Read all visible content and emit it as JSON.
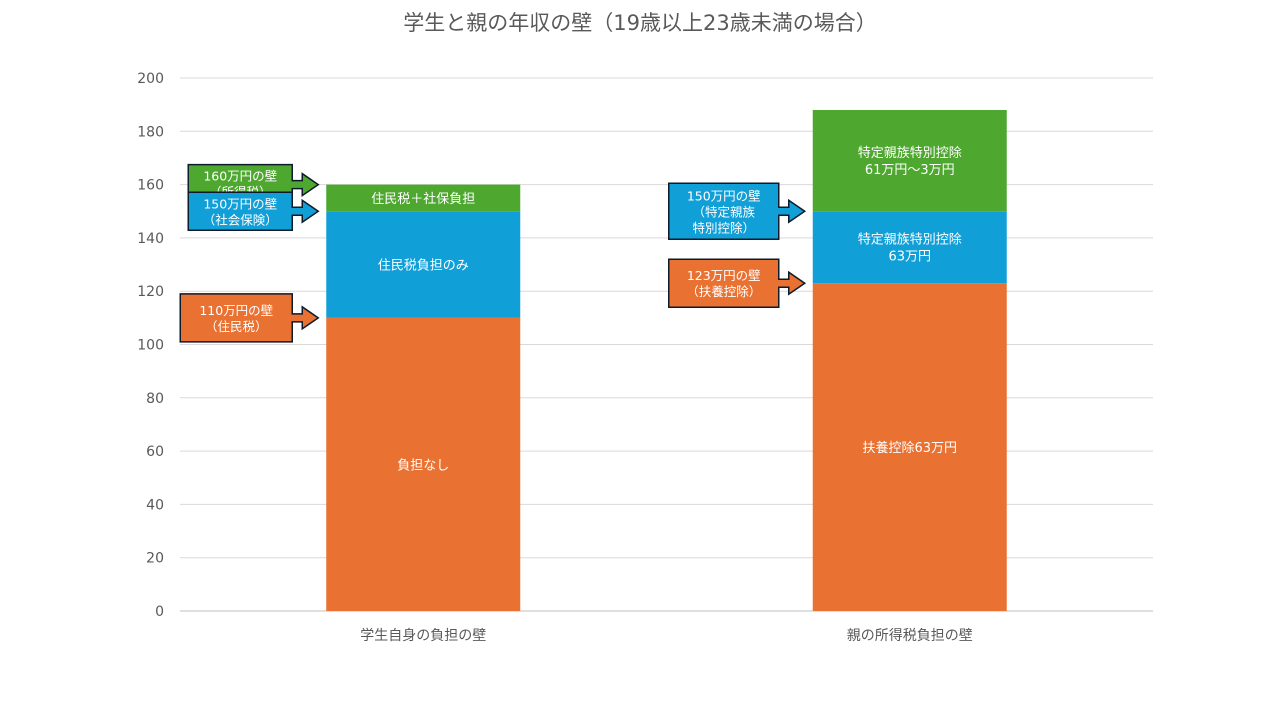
{
  "chart_data": {
    "type": "bar",
    "stacked": true,
    "title": "学生と親の年収の壁（19歳以上23歳未満の場合）",
    "xlabel": "",
    "ylabel": "",
    "ylim": [
      0,
      200
    ],
    "y_ticks": [
      "0",
      "20",
      "40",
      "60",
      "80",
      "100",
      "120",
      "140",
      "160",
      "180",
      "200"
    ],
    "grid": true,
    "legend": "none",
    "categories": [
      "学生自身の負担の壁",
      "親の所得税負担の壁"
    ],
    "segments": [
      [
        {
          "from": 0,
          "to": 110,
          "color": "#E97132",
          "label": [
            "負担なし"
          ]
        },
        {
          "from": 110,
          "to": 150,
          "color": "#119FD8",
          "label": [
            "住民税負担のみ"
          ]
        },
        {
          "from": 150,
          "to": 160,
          "color": "#4EA72E",
          "label": [
            "住民税＋社保負担"
          ]
        }
      ],
      [
        {
          "from": 0,
          "to": 123,
          "color": "#E97132",
          "label": [
            "扶養控除63万円"
          ]
        },
        {
          "from": 123,
          "to": 150,
          "color": "#119FD8",
          "label": [
            "特定親族特別控除",
            "63万円"
          ]
        },
        {
          "from": 150,
          "to": 188,
          "color": "#4EA72E",
          "label": [
            "特定親族特別控除",
            "61万円〜3万円"
          ]
        }
      ]
    ],
    "annotations": [
      {
        "category": 0,
        "value": 160,
        "color": "#4EA72E",
        "lines": [
          "160万円の壁",
          "（所得税）"
        ]
      },
      {
        "category": 0,
        "value": 150,
        "color": "#119FD8",
        "lines": [
          "150万円の壁",
          "（社会保険）"
        ]
      },
      {
        "category": 0,
        "value": 110,
        "color": "#E97132",
        "lines": [
          "110万円の壁",
          "（住民税）"
        ]
      },
      {
        "category": 1,
        "value": 150,
        "color": "#119FD8",
        "lines": [
          "150万円の壁",
          "（特定親族",
          "特別控除）"
        ]
      },
      {
        "category": 1,
        "value": 123,
        "color": "#E97132",
        "lines": [
          "123万円の壁",
          "（扶養控除）"
        ]
      }
    ]
  }
}
